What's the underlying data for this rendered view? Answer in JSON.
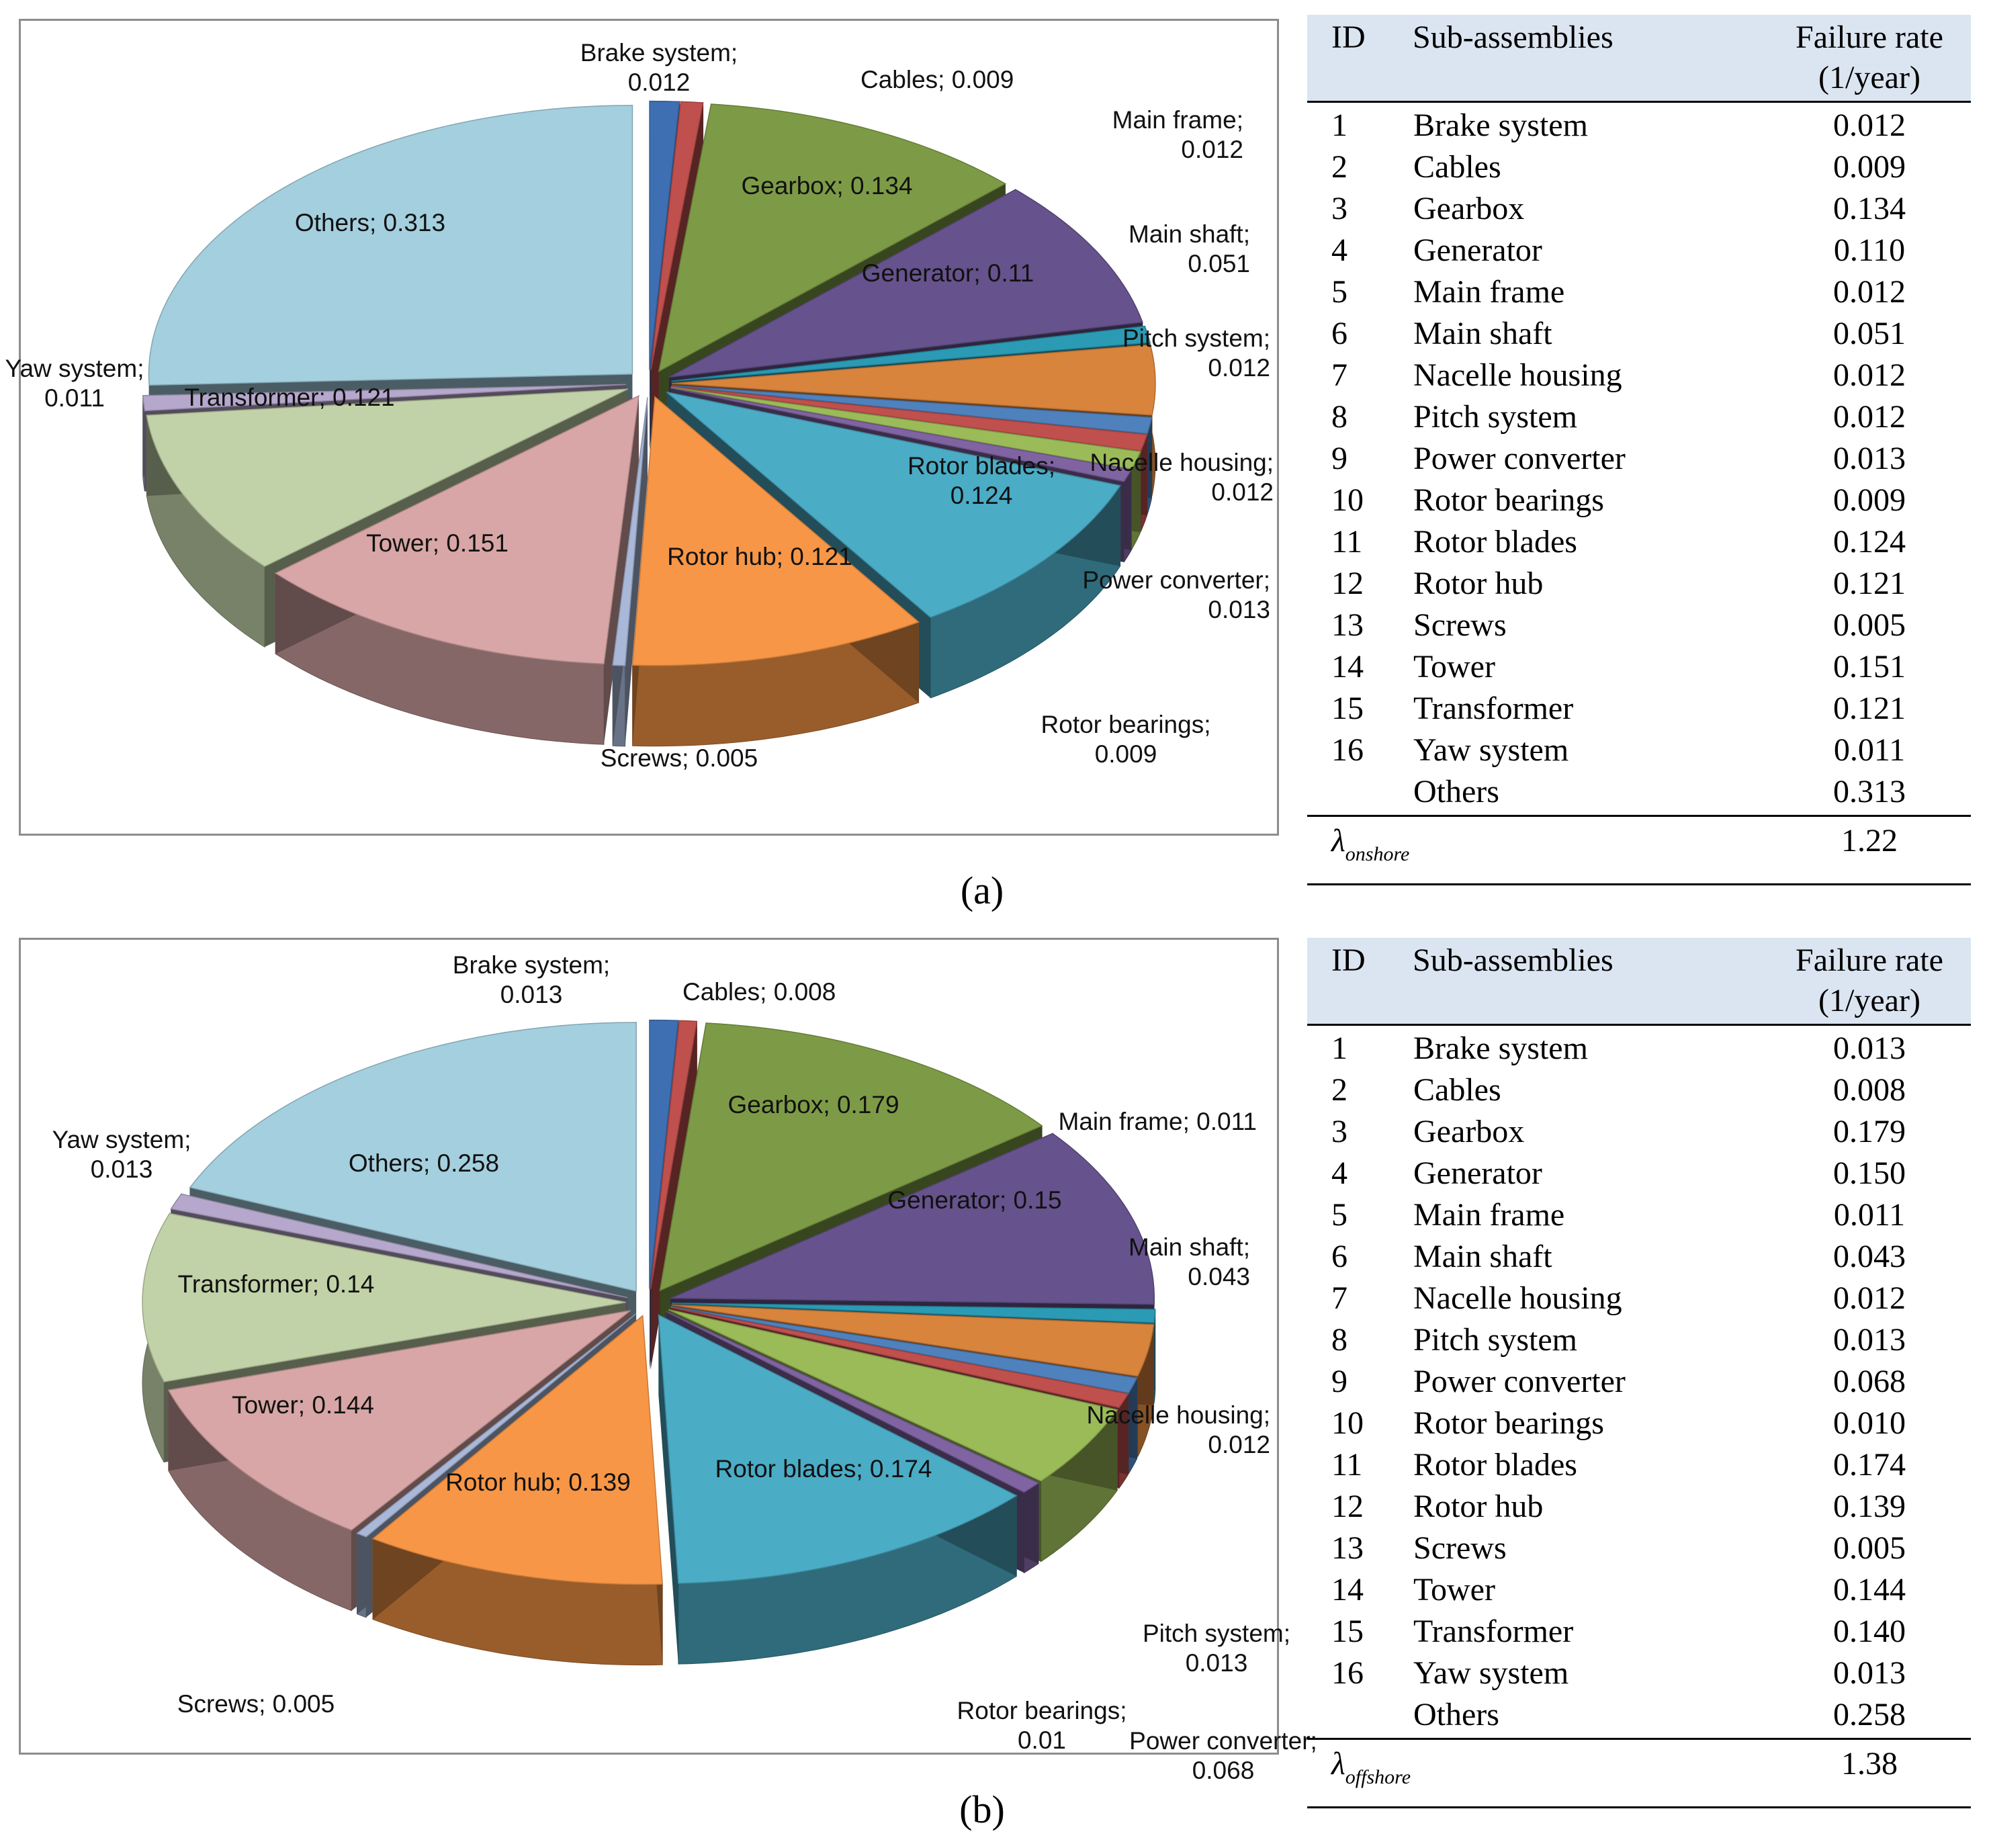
{
  "panels": [
    {
      "caption": "(a)",
      "table": {
        "headers": {
          "id": "ID",
          "name": "Sub-assemblies",
          "rate_line1": "Failure rate",
          "rate_line2": "(1/year)"
        },
        "rows": [
          {
            "id": "1",
            "name": "Brake system",
            "rate": "0.012"
          },
          {
            "id": "2",
            "name": "Cables",
            "rate": "0.009"
          },
          {
            "id": "3",
            "name": "Gearbox",
            "rate": "0.134"
          },
          {
            "id": "4",
            "name": "Generator",
            "rate": "0.110"
          },
          {
            "id": "5",
            "name": "Main frame",
            "rate": "0.012"
          },
          {
            "id": "6",
            "name": "Main shaft",
            "rate": "0.051"
          },
          {
            "id": "7",
            "name": "Nacelle housing",
            "rate": "0.012"
          },
          {
            "id": "8",
            "name": "Pitch system",
            "rate": "0.012"
          },
          {
            "id": "9",
            "name": "Power converter",
            "rate": "0.013"
          },
          {
            "id": "10",
            "name": "Rotor bearings",
            "rate": "0.009"
          },
          {
            "id": "11",
            "name": "Rotor blades",
            "rate": "0.124"
          },
          {
            "id": "12",
            "name": "Rotor hub",
            "rate": "0.121"
          },
          {
            "id": "13",
            "name": "Screws",
            "rate": "0.005"
          },
          {
            "id": "14",
            "name": "Tower",
            "rate": "0.151"
          },
          {
            "id": "15",
            "name": "Transformer",
            "rate": "0.121"
          },
          {
            "id": "16",
            "name": "Yaw system",
            "rate": "0.011"
          },
          {
            "id": "",
            "name": "Others",
            "rate": "0.313"
          }
        ],
        "total_symbol": "λ",
        "total_subscript": "onshore",
        "total_value": "1.22"
      }
    },
    {
      "caption": "(b)",
      "table": {
        "headers": {
          "id": "ID",
          "name": "Sub-assemblies",
          "rate_line1": "Failure rate",
          "rate_line2": "(1/year)"
        },
        "rows": [
          {
            "id": "1",
            "name": "Brake system",
            "rate": "0.013"
          },
          {
            "id": "2",
            "name": "Cables",
            "rate": "0.008"
          },
          {
            "id": "3",
            "name": "Gearbox",
            "rate": "0.179"
          },
          {
            "id": "4",
            "name": "Generator",
            "rate": "0.150"
          },
          {
            "id": "5",
            "name": "Main frame",
            "rate": "0.011"
          },
          {
            "id": "6",
            "name": "Main shaft",
            "rate": "0.043"
          },
          {
            "id": "7",
            "name": "Nacelle housing",
            "rate": "0.012"
          },
          {
            "id": "8",
            "name": "Pitch system",
            "rate": "0.013"
          },
          {
            "id": "9",
            "name": "Power converter",
            "rate": "0.068"
          },
          {
            "id": "10",
            "name": "Rotor bearings",
            "rate": "0.010"
          },
          {
            "id": "11",
            "name": "Rotor blades",
            "rate": "0.174"
          },
          {
            "id": "12",
            "name": "Rotor hub",
            "rate": "0.139"
          },
          {
            "id": "13",
            "name": "Screws",
            "rate": "0.005"
          },
          {
            "id": "14",
            "name": "Tower",
            "rate": "0.144"
          },
          {
            "id": "15",
            "name": "Transformer",
            "rate": "0.140"
          },
          {
            "id": "16",
            "name": "Yaw system",
            "rate": "0.013"
          },
          {
            "id": "",
            "name": "Others",
            "rate": "0.258"
          }
        ],
        "total_symbol": "λ",
        "total_subscript": "offshore",
        "total_value": "1.38"
      }
    }
  ],
  "chart_data": [
    {
      "type": "pie",
      "title": "",
      "categories": [
        "Brake system",
        "Cables",
        "Gearbox",
        "Generator",
        "Main frame",
        "Main shaft",
        "Pitch system",
        "Nacelle housing",
        "Power converter",
        "Rotor bearings",
        "Rotor blades",
        "Rotor hub",
        "Screws",
        "Tower",
        "Transformer",
        "Yaw system",
        "Others"
      ],
      "values": [
        0.012,
        0.009,
        0.134,
        0.11,
        0.012,
        0.051,
        0.012,
        0.012,
        0.013,
        0.009,
        0.124,
        0.121,
        0.005,
        0.151,
        0.121,
        0.011,
        0.313
      ],
      "colors": [
        "#3f6fb3",
        "#c0504d",
        "#7d9b46",
        "#66528c",
        "#2b9bb5",
        "#d8843c",
        "#4f81bd",
        "#c0504d",
        "#9bbb59",
        "#8064a2",
        "#4bacc6",
        "#f79646",
        "#a9b8d8",
        "#d8a6a6",
        "#c2d2a8",
        "#b6a8cc",
        "#a4cfde"
      ],
      "labels": [
        {
          "name": "Brake system;",
          "value": "0.012"
        },
        {
          "name": "Cables;",
          "value": "0.009"
        },
        {
          "name": "Gearbox;",
          "value": "0.134"
        },
        {
          "name": "Generator;",
          "value": "0.11"
        },
        {
          "name": "Main frame;",
          "value": "0.012"
        },
        {
          "name": "Main shaft;",
          "value": "0.051"
        },
        {
          "name": "Pitch system;",
          "value": "0.012"
        },
        {
          "name": "Nacelle housing;",
          "value": "0.012"
        },
        {
          "name": "Power converter;",
          "value": "0.013"
        },
        {
          "name": "Rotor bearings;",
          "value": "0.009"
        },
        {
          "name": "Rotor blades;",
          "value": "0.124"
        },
        {
          "name": "Rotor hub;",
          "value": "0.121"
        },
        {
          "name": "Screws;",
          "value": "0.005"
        },
        {
          "name": "Tower;",
          "value": "0.151"
        },
        {
          "name": "Transformer;",
          "value": "0.121"
        },
        {
          "name": "Yaw system;",
          "value": "0.011"
        },
        {
          "name": "Others;",
          "value": "0.313"
        }
      ]
    },
    {
      "type": "pie",
      "title": "",
      "categories": [
        "Brake system",
        "Cables",
        "Gearbox",
        "Generator",
        "Main frame",
        "Main shaft",
        "Pitch system",
        "Nacelle housing",
        "Power converter",
        "Rotor bearings",
        "Rotor blades",
        "Rotor hub",
        "Screws",
        "Tower",
        "Transformer",
        "Yaw system",
        "Others"
      ],
      "values": [
        0.013,
        0.008,
        0.179,
        0.15,
        0.011,
        0.043,
        0.013,
        0.012,
        0.068,
        0.01,
        0.174,
        0.139,
        0.005,
        0.144,
        0.14,
        0.013,
        0.258
      ],
      "colors": [
        "#3f6fb3",
        "#c0504d",
        "#7d9b46",
        "#66528c",
        "#2b9bb5",
        "#d8843c",
        "#4f81bd",
        "#c0504d",
        "#9bbb59",
        "#8064a2",
        "#4bacc6",
        "#f79646",
        "#a9b8d8",
        "#d8a6a6",
        "#c2d2a8",
        "#b6a8cc",
        "#a4cfde"
      ],
      "labels": [
        {
          "name": "Brake system;",
          "value": "0.013"
        },
        {
          "name": "Cables;",
          "value": "0.008"
        },
        {
          "name": "Gearbox;",
          "value": "0.179"
        },
        {
          "name": "Generator;",
          "value": "0.15"
        },
        {
          "name": "Main frame;",
          "value": "0.011"
        },
        {
          "name": "Main shaft;",
          "value": "0.043"
        },
        {
          "name": "Pitch system;",
          "value": "0.013"
        },
        {
          "name": "Nacelle housing;",
          "value": "0.012"
        },
        {
          "name": "Power converter;",
          "value": "0.068"
        },
        {
          "name": "Rotor bearings;",
          "value": "0.01"
        },
        {
          "name": "Rotor blades;",
          "value": "0.174"
        },
        {
          "name": "Rotor hub;",
          "value": "0.139"
        },
        {
          "name": "Screws;",
          "value": "0.005"
        },
        {
          "name": "Tower;",
          "value": "0.144"
        },
        {
          "name": "Transformer;",
          "value": "0.14"
        },
        {
          "name": "Yaw system;",
          "value": "0.013"
        },
        {
          "name": "Others;",
          "value": "0.258"
        }
      ]
    }
  ]
}
